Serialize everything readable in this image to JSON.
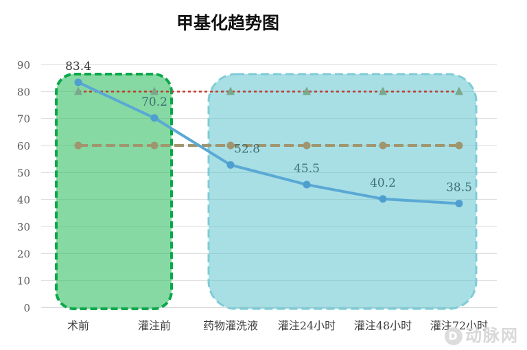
{
  "chart_data": {
    "type": "line",
    "title": "甲基化趋势图",
    "categories": [
      "术前",
      "灌注前",
      "药物灌洗液",
      "灌注24小时",
      "灌注48小时",
      "灌注72小时"
    ],
    "ylim": [
      0,
      90
    ],
    "yticks": [
      0,
      10,
      20,
      30,
      40,
      50,
      60,
      70,
      80,
      90
    ],
    "grid": true,
    "series": [
      {
        "values": [
          83.4,
          70.2,
          52.8,
          45.5,
          40.2,
          38.5
        ],
        "color": "#5aa8d4",
        "style": "solid-markers",
        "labels": [
          "83.4",
          "70.2",
          "52.8",
          "45.5",
          "40.2",
          "38.5"
        ]
      },
      {
        "values": [
          80,
          80,
          80,
          80,
          80,
          80
        ],
        "color": "#c0392b",
        "style": "dotted-triangles"
      },
      {
        "values": [
          60,
          60,
          60,
          60,
          60,
          60
        ],
        "color": "#a0956e",
        "style": "dashed-circles"
      }
    ],
    "regions": [
      {
        "from": "术前",
        "to": "灌注前",
        "fill": "#3cc16a",
        "stroke": "#0aa84a"
      },
      {
        "from": "药物灌洗液",
        "to": "灌注72小时",
        "fill": "#5ec4cf",
        "stroke": "#7fcbd6"
      }
    ]
  },
  "watermark": {
    "icon": "D",
    "text": "动脉网"
  }
}
